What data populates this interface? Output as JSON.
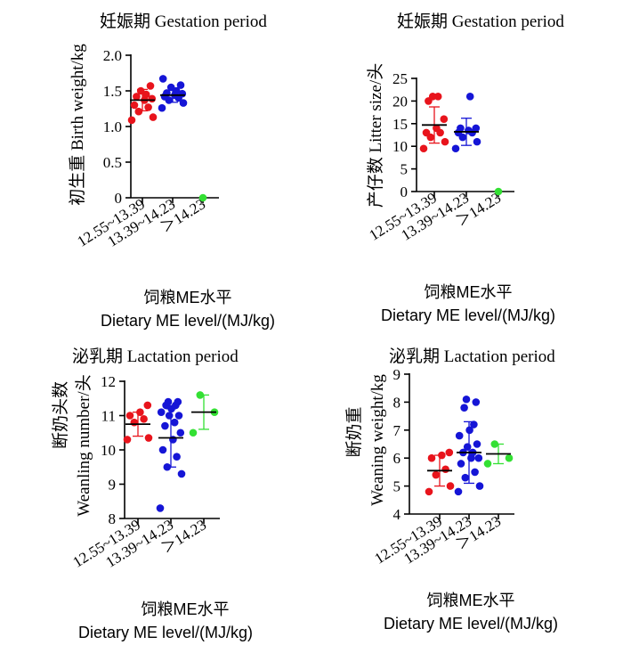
{
  "chart_data": [
    {
      "type": "scatter",
      "title": "妊娠期  Gestation period",
      "ylabel": "初生重  Birth weight/kg",
      "xlabel": [
        "饲粮ME水平",
        "Dietary ME level/(MJ/kg)"
      ],
      "ylim": [
        0,
        2.0
      ],
      "yticks": [
        0,
        0.5,
        1.0,
        1.5,
        2.0
      ],
      "ytick_labels": [
        "0",
        "0.5",
        "1.0",
        "1.5",
        "2.0"
      ],
      "categories": [
        "12.55~13.39",
        "13.39~14.23",
        "＞14.23"
      ],
      "colors": [
        "#e8141c",
        "#1515d6",
        "#33e033"
      ],
      "groups": [
        {
          "points": [
            1.09,
            1.13,
            1.21,
            1.27,
            1.3,
            1.37,
            1.39,
            1.42,
            1.45,
            1.5,
            1.57
          ],
          "mean": 1.37,
          "sd": 0.15
        },
        {
          "points": [
            1.26,
            1.33,
            1.37,
            1.4,
            1.42,
            1.44,
            1.46,
            1.47,
            1.5,
            1.55,
            1.58,
            1.67
          ],
          "mean": 1.44,
          "sd": 0.1
        },
        {
          "points": [
            0
          ],
          "mean": null,
          "sd": null
        }
      ]
    },
    {
      "type": "scatter",
      "title": "妊娠期  Gestation period",
      "ylabel": "产仔数  Litter size/头",
      "xlabel": [
        "饲粮ME水平",
        "Dietary ME level/(MJ/kg)"
      ],
      "ylim": [
        0,
        25
      ],
      "yticks": [
        0,
        5,
        10,
        15,
        20,
        25
      ],
      "ytick_labels": [
        "0",
        "5",
        "10",
        "15",
        "20",
        "25"
      ],
      "categories": [
        "12.55~13.39",
        "13.39~14.23",
        "＞14.23"
      ],
      "colors": [
        "#e8141c",
        "#1515d6",
        "#33e033"
      ],
      "groups": [
        {
          "points": [
            9.5,
            11,
            12,
            13,
            13,
            14,
            16,
            20,
            21,
            21
          ],
          "mean": 14.7,
          "sd": 4.0
        },
        {
          "points": [
            9.5,
            11,
            12,
            13,
            13,
            13.5,
            14,
            14,
            21
          ],
          "mean": 13.2,
          "sd": 3.0
        },
        {
          "points": [
            0
          ],
          "mean": null,
          "sd": null
        }
      ]
    },
    {
      "type": "scatter",
      "title": "泌乳期  Lactation period",
      "ylabel": [
        "断奶头数",
        "Weanling number/头"
      ],
      "xlabel": [
        "饲粮ME水平",
        "Dietary ME level/(MJ/kg)"
      ],
      "ylim": [
        8,
        12
      ],
      "yticks": [
        8,
        9,
        10,
        11,
        12
      ],
      "ytick_labels": [
        "8",
        "9",
        "10",
        "11",
        "12"
      ],
      "categories": [
        "12.55~13.39",
        "13.39~14.23",
        "＞14.23"
      ],
      "colors": [
        "#e8141c",
        "#1515d6",
        "#33e033"
      ],
      "groups": [
        {
          "points": [
            10.3,
            10.35,
            10.8,
            10.9,
            11.0,
            11.1,
            11.3
          ],
          "mean": 10.75,
          "sd": 0.35
        },
        {
          "points": [
            8.3,
            9.3,
            9.5,
            9.8,
            10.0,
            10.3,
            10.5,
            10.7,
            10.8,
            11.0,
            11.0,
            11.1,
            11.2,
            11.3,
            11.3,
            11.4,
            11.4
          ],
          "mean": 10.35,
          "sd": 0.85
        },
        {
          "points": [
            10.5,
            11.1,
            11.6
          ],
          "mean": 11.1,
          "sd": 0.5
        }
      ]
    },
    {
      "type": "scatter",
      "title": "泌乳期  Lactation period",
      "ylabel": [
        "断奶重",
        "Weaning weight/kg"
      ],
      "xlabel": [
        "饲粮ME水平",
        "Dietary ME level/(MJ/kg)"
      ],
      "ylim": [
        4,
        9
      ],
      "yticks": [
        4,
        5,
        6,
        7,
        8,
        9
      ],
      "ytick_labels": [
        "4",
        "5",
        "6",
        "7",
        "8",
        "9"
      ],
      "categories": [
        "12.55~13.39",
        "13.39~14.23",
        "＞14.23"
      ],
      "colors": [
        "#e8141c",
        "#1515d6",
        "#33e033"
      ],
      "groups": [
        {
          "points": [
            4.8,
            5.0,
            5.4,
            5.6,
            6.0,
            6.1,
            6.2
          ],
          "mean": 5.55,
          "sd": 0.55
        },
        {
          "points": [
            4.8,
            5.0,
            5.3,
            5.5,
            5.8,
            6.0,
            6.0,
            6.2,
            6.2,
            6.4,
            6.5,
            6.8,
            7.0,
            7.2,
            7.8,
            8.0,
            8.1
          ],
          "mean": 6.2,
          "sd": 1.1
        },
        {
          "points": [
            5.8,
            6.0,
            6.5
          ],
          "mean": 6.15,
          "sd": 0.35
        }
      ]
    }
  ]
}
